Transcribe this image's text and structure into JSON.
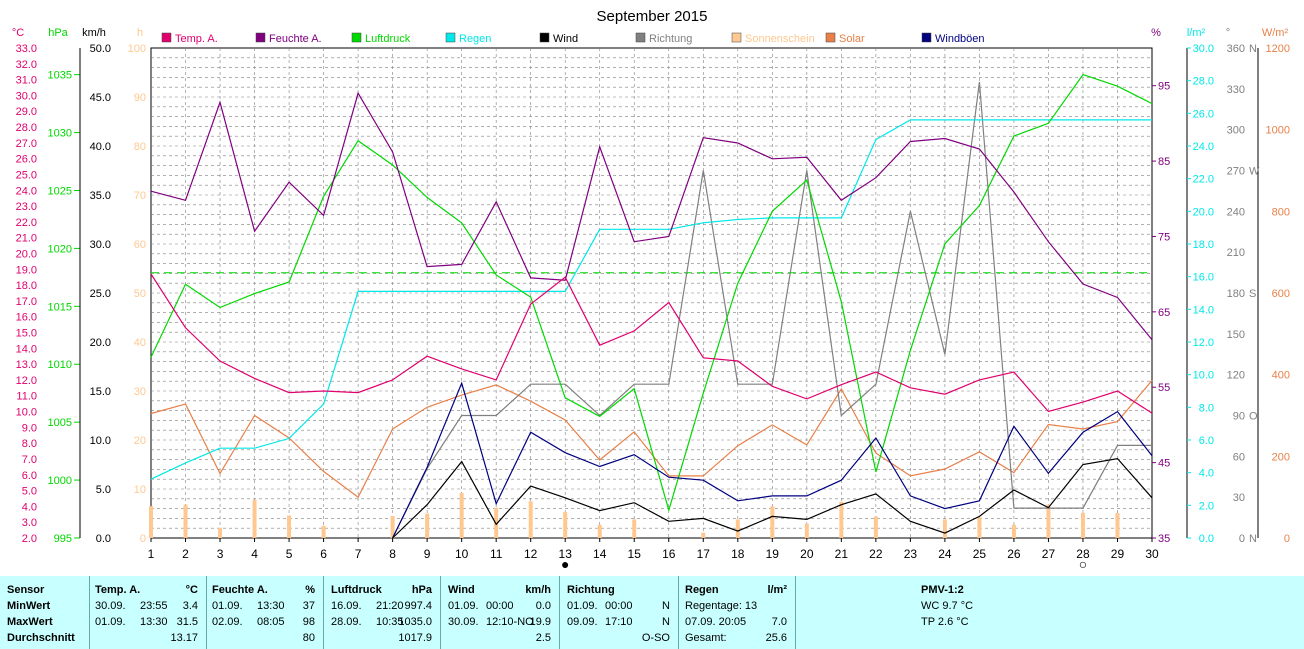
{
  "title": "September 2015",
  "colors": {
    "temp": "#e0006e",
    "hum": "#800080",
    "press": "#00d800",
    "rain": "#00e8e8",
    "wind": "#000000",
    "dir": "#808080",
    "sun": "#ffc890",
    "solar": "#e88048",
    "gust": "#000080",
    "grid": "#808080",
    "stats_bg": "#c8ffff"
  },
  "legend": [
    {
      "key": "temp",
      "label": "Temp. A."
    },
    {
      "key": "hum",
      "label": "Feuchte A."
    },
    {
      "key": "press",
      "label": "Luftdruck"
    },
    {
      "key": "rain",
      "label": "Regen"
    },
    {
      "key": "wind",
      "label": "Wind"
    },
    {
      "key": "dir",
      "label": "Richtung"
    },
    {
      "key": "sun",
      "label": "Sonnenschein"
    },
    {
      "key": "solar",
      "label": "Solar"
    },
    {
      "key": "gust",
      "label": "Windböen"
    }
  ],
  "chart_data": {
    "type": "line",
    "title": "September 2015",
    "x": [
      1,
      2,
      3,
      4,
      5,
      6,
      7,
      8,
      9,
      10,
      11,
      12,
      13,
      14,
      15,
      16,
      17,
      18,
      19,
      20,
      21,
      22,
      23,
      24,
      25,
      26,
      27,
      28,
      29,
      30
    ],
    "grid": true,
    "legend_position": "top",
    "markers": [
      {
        "day": 13,
        "symbol": "new-moon",
        "glyph": "●"
      },
      {
        "day": 28,
        "symbol": "full-moon",
        "glyph": "○"
      }
    ],
    "axes": {
      "temp": {
        "unit": "°C",
        "min": 2,
        "max": 33,
        "step": 1
      },
      "press": {
        "unit": "hPa",
        "min": 995,
        "max": 1037.3,
        "ticks": [
          995,
          1000,
          1005,
          1010,
          1015,
          1020,
          1025,
          1030,
          1035
        ]
      },
      "wind": {
        "unit": "km/h",
        "min": 0,
        "max": 50,
        "step": 5
      },
      "sun": {
        "unit": "h",
        "min": 0,
        "max": 100,
        "step": 10
      },
      "hum": {
        "unit": "%",
        "min": 35,
        "max": 100,
        "ticks": [
          35,
          45,
          55,
          65,
          75,
          85,
          95
        ]
      },
      "rain": {
        "unit": "l/m²",
        "min": 0,
        "max": 30,
        "step": 2
      },
      "dir": {
        "unit": "°",
        "min": 0,
        "max": 360,
        "step": 30,
        "labels": {
          "0": "N",
          "90": "O",
          "180": "S",
          "270": "W",
          "360": "N"
        }
      },
      "solar": {
        "unit": "W/m²",
        "min": 0,
        "max": 1200,
        "step": 200
      }
    },
    "series": [
      {
        "key": "temp",
        "name": "Temp. A.",
        "axis": "temp",
        "values": [
          18.7,
          15.3,
          13.2,
          12.1,
          11.2,
          11.3,
          11.2,
          12.0,
          13.5,
          12.7,
          12.0,
          16.8,
          18.5,
          14.2,
          15.1,
          16.9,
          13.4,
          13.2,
          11.6,
          10.8,
          11.7,
          12.5,
          11.5,
          11.1,
          12.0,
          12.5,
          10.0,
          10.6,
          11.3,
          9.9
        ]
      },
      {
        "key": "hum",
        "name": "Feuchte A.",
        "axis": "hum",
        "values": [
          81.0,
          79.8,
          92.8,
          75.7,
          82.2,
          77.8,
          94.0,
          86.2,
          71.0,
          71.3,
          79.6,
          69.5,
          69.2,
          86.9,
          74.3,
          75.0,
          88.1,
          87.4,
          85.3,
          85.5,
          79.8,
          82.8,
          87.6,
          88.0,
          86.6,
          80.9,
          74.3,
          68.7,
          66.9,
          61.3
        ]
      },
      {
        "key": "press",
        "name": "Luftdruck",
        "axis": "press",
        "values": [
          1010.6,
          1016.9,
          1014.9,
          1016.1,
          1017.1,
          1024.5,
          1029.3,
          1027.2,
          1024.4,
          1022.2,
          1017.7,
          1015.8,
          1007.1,
          1005.5,
          1007.9,
          997.4,
          1007.5,
          1017.0,
          1023.2,
          1025.9,
          1015.4,
          1000.7,
          1011.2,
          1020.4,
          1023.7,
          1029.7,
          1030.8,
          1035.0,
          1034.0,
          1032.5
        ]
      },
      {
        "key": "rain",
        "name": "Regen",
        "axis": "rain",
        "values": [
          3.6,
          4.6,
          5.5,
          5.5,
          6.1,
          8.2,
          15.1,
          15.1,
          15.1,
          15.1,
          15.1,
          15.1,
          15.1,
          18.9,
          18.9,
          18.9,
          19.3,
          19.5,
          19.6,
          19.6,
          19.6,
          24.4,
          25.6,
          25.6,
          25.6,
          25.6,
          25.6,
          25.6,
          25.6,
          25.6
        ]
      },
      {
        "key": "wind",
        "name": "Wind",
        "axis": "wind",
        "values": [
          null,
          null,
          null,
          null,
          null,
          null,
          null,
          0.0,
          3.4,
          7.8,
          1.4,
          5.3,
          4.1,
          2.8,
          3.6,
          1.7,
          2.0,
          0.7,
          2.2,
          1.9,
          3.4,
          4.5,
          1.7,
          0.5,
          2.2,
          4.9,
          3.1,
          7.5,
          8.1,
          4.1
        ]
      },
      {
        "key": "dir",
        "name": "Richtung",
        "axis": "dir",
        "values": [
          null,
          null,
          null,
          null,
          null,
          null,
          null,
          0,
          51,
          90,
          90,
          113,
          113,
          90,
          113,
          113,
          270,
          113,
          113,
          270,
          90,
          113,
          240,
          135,
          335,
          22,
          22,
          22,
          68,
          68
        ]
      },
      {
        "key": "gust",
        "name": "Windböen",
        "axis": "gust_axis_wind",
        "values": [
          null,
          null,
          null,
          null,
          null,
          null,
          null,
          0.0,
          7.2,
          15.8,
          3.5,
          10.8,
          8.7,
          7.3,
          8.5,
          6.2,
          5.9,
          3.8,
          4.3,
          4.3,
          5.9,
          10.2,
          4.3,
          3.0,
          3.8,
          11.4,
          6.6,
          10.8,
          12.9,
          8.4
        ]
      },
      {
        "key": "solar",
        "name": "Solar",
        "axis": "solar",
        "values": [
          305,
          328,
          158,
          300,
          245,
          163,
          100,
          267,
          320,
          350,
          375,
          335,
          289,
          191,
          260,
          152,
          152,
          226,
          277,
          228,
          365,
          208,
          152,
          169,
          211,
          160,
          278,
          267,
          285,
          386
        ]
      },
      {
        "key": "sun",
        "name": "Sonnenschein",
        "axis": "sun",
        "type": "bar",
        "values": [
          6.5,
          6.8,
          2.1,
          7.8,
          4.6,
          2.5,
          null,
          4.5,
          5.0,
          9.2,
          6.2,
          7.5,
          5.3,
          2.7,
          3.8,
          null,
          1.1,
          3.8,
          6.5,
          2.9,
          7.4,
          4.4,
          null,
          3.8,
          4.2,
          2.7,
          6.8,
          5.1,
          5.1,
          null
        ]
      }
    ],
    "reference_lines": [
      {
        "axis": "press",
        "value": 1017.9,
        "style": "dashed",
        "color": "#00d800"
      }
    ]
  },
  "stats": {
    "sensor": {
      "header": "Sensor",
      "rows": [
        "MinWert",
        "MaxWert",
        "Durchschnitt"
      ]
    },
    "temp": {
      "header": "Temp. A.",
      "unit": "°C",
      "min": {
        "date": "30.09.",
        "time": "23:55",
        "val": "3.4"
      },
      "max": {
        "date": "01.09.",
        "time": "13:30",
        "val": "31.5"
      },
      "avg": "13.17"
    },
    "hum": {
      "header": "Feuchte A.",
      "unit": "%",
      "min": {
        "date": "01.09.",
        "time": "13:30",
        "val": "37"
      },
      "max": {
        "date": "02.09.",
        "time": "08:05",
        "val": "98"
      },
      "avg": "80"
    },
    "press": {
      "header": "Luftdruck",
      "unit": "hPa",
      "min": {
        "date": "16.09.",
        "time": "21:20",
        "val": "997.4"
      },
      "max": {
        "date": "28.09.",
        "time": "10:35",
        "val": "1035.0"
      },
      "avg": "1017.9"
    },
    "wind": {
      "header": "Wind",
      "unit": "km/h",
      "min": {
        "date": "01.09.",
        "time": "00:00",
        "val": "0.0"
      },
      "max": {
        "date": "30.09.",
        "time": "12:10-NO",
        "val": "19.9"
      },
      "avg": "2.5"
    },
    "dir": {
      "header": "Richtung",
      "min": {
        "date": "01.09.",
        "time": "00:00",
        "val": "N"
      },
      "max": {
        "date": "09.09.",
        "time": "17:10",
        "val": "N"
      },
      "avg": "O-SO"
    },
    "rain": {
      "header": "Regen",
      "unit": "l/m²",
      "r1_label": "Regentage: 13",
      "r1_val": "",
      "r2_label": "07.09.  20:05",
      "r2_val": "7.0",
      "r3_label": "Gesamt:",
      "r3_val": "25.6"
    },
    "pmv": {
      "header": "PMV-1:2",
      "wc": "WC 9.7 °C",
      "tp": "TP 2.6 °C"
    }
  }
}
